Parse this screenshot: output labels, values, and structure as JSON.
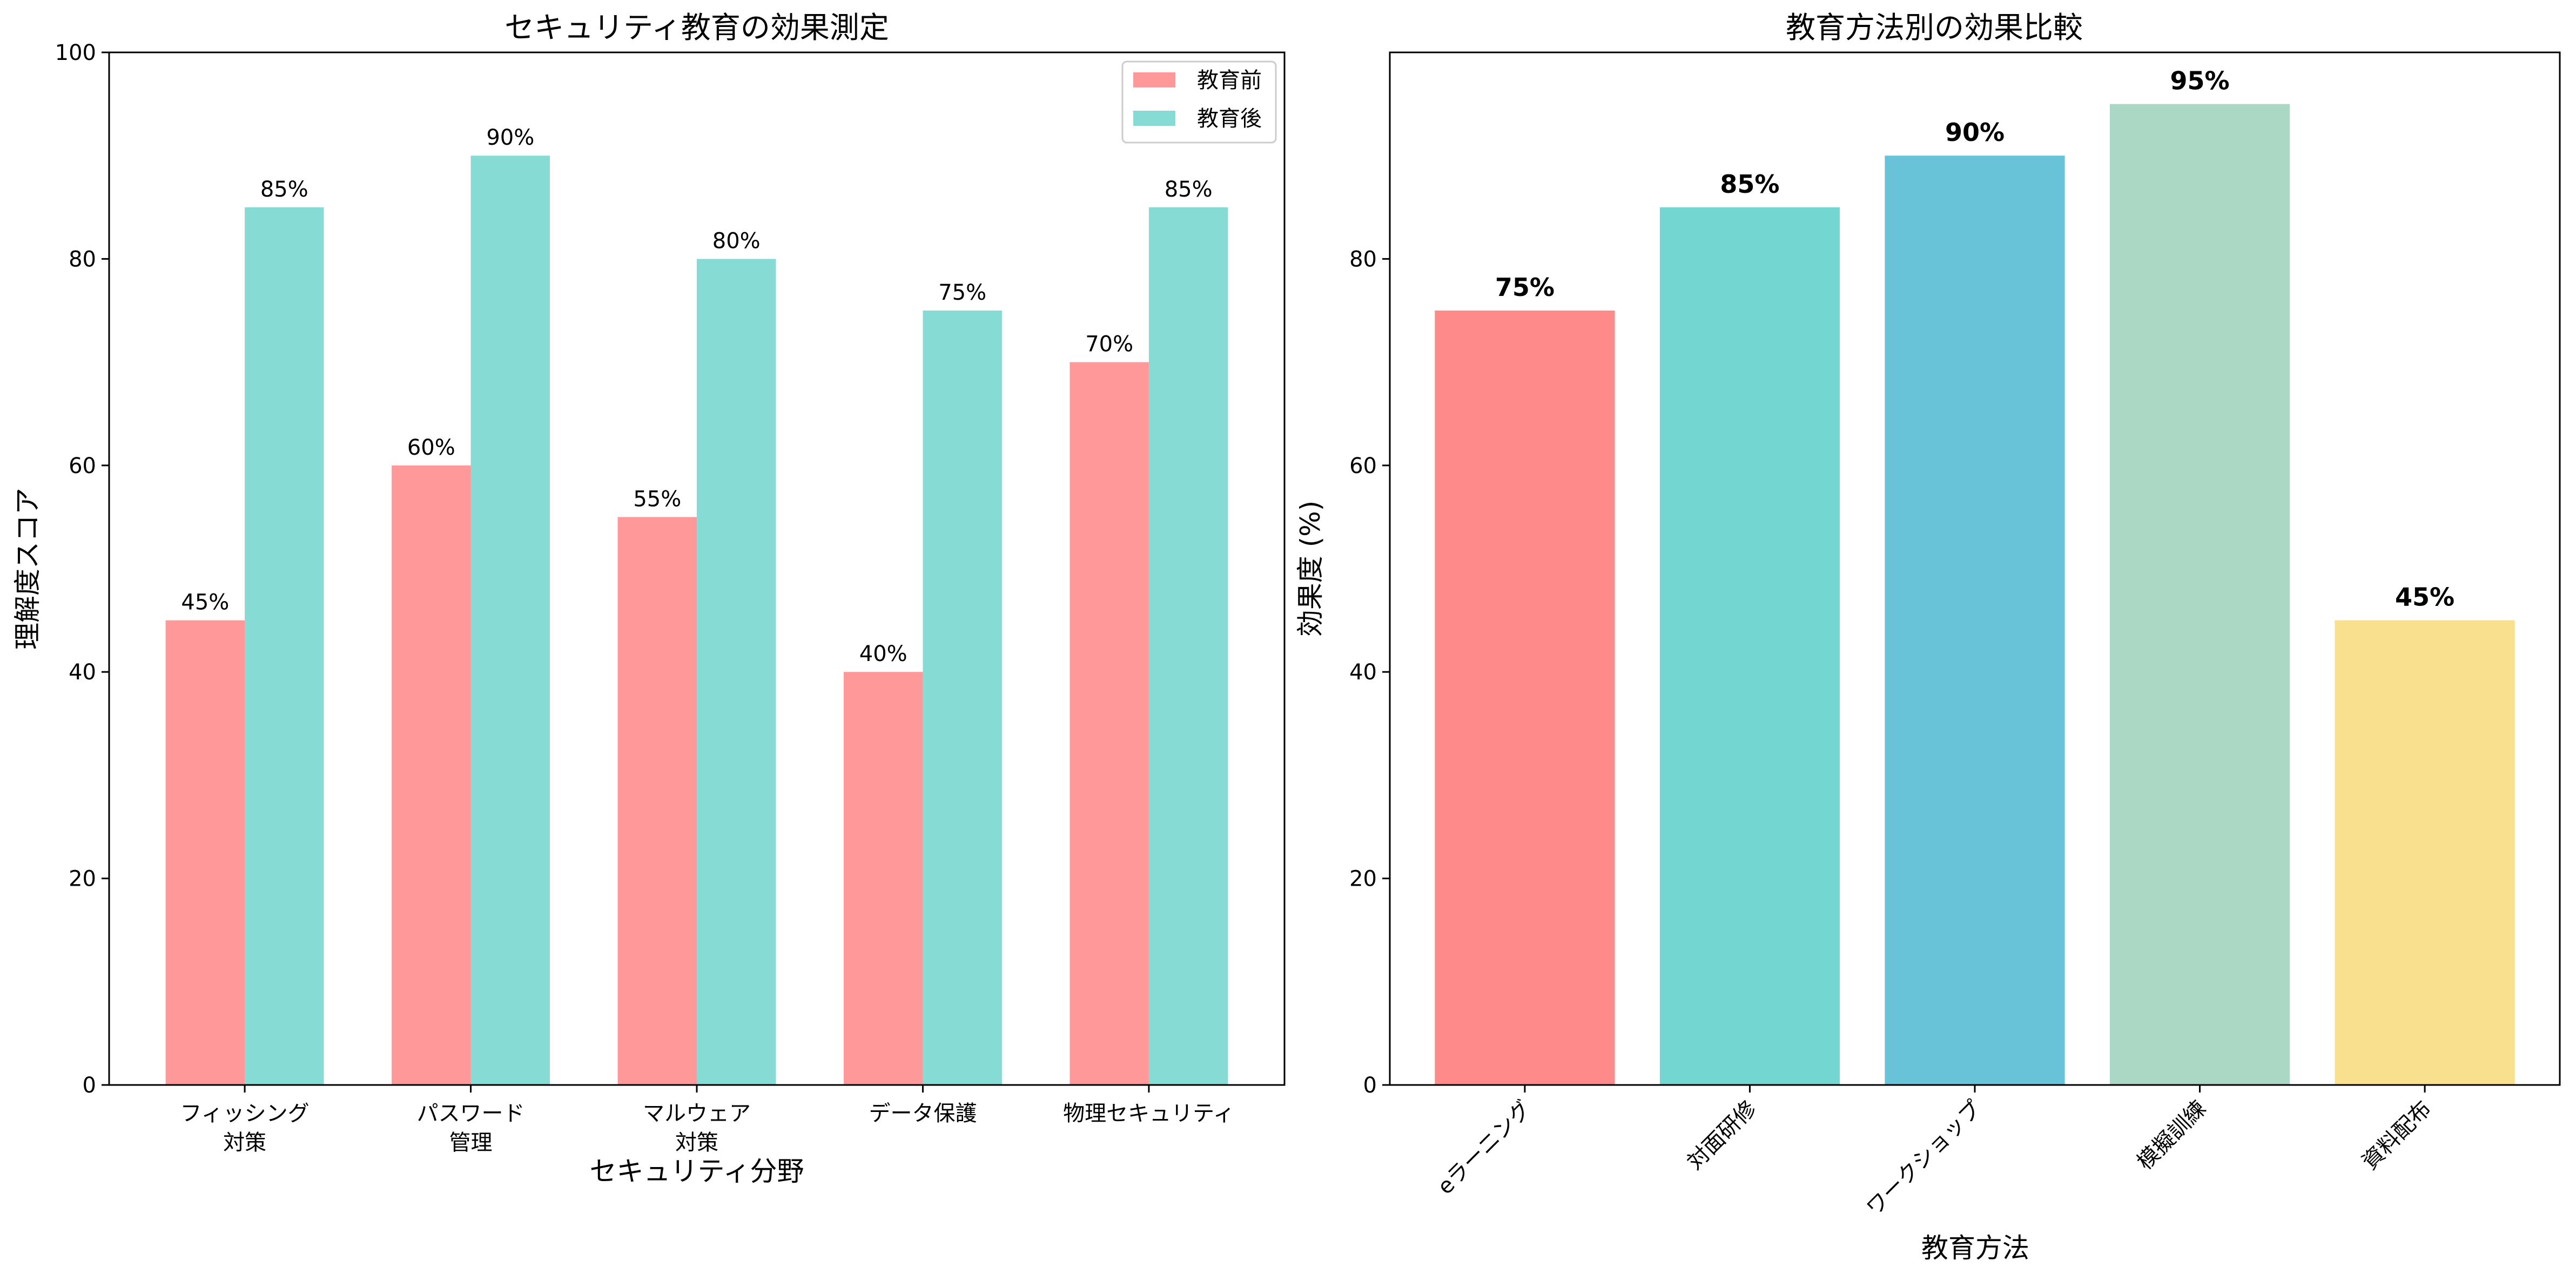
{
  "chart_data": [
    {
      "type": "bar",
      "title": "セキュリティ教育の効果測定",
      "xlabel": "セキュリティ分野",
      "ylabel": "理解度スコア",
      "ylim": [
        0,
        100
      ],
      "yticks": [
        0,
        20,
        40,
        60,
        80,
        100
      ],
      "categories": [
        [
          "フィッシング",
          "対策"
        ],
        [
          "パスワード",
          "管理"
        ],
        [
          "マルウェア",
          "対策"
        ],
        [
          "データ保護"
        ],
        [
          "物理セキュリティ"
        ]
      ],
      "series": [
        {
          "name": "教育前",
          "color": "#FF9999",
          "values": [
            45,
            60,
            55,
            40,
            70
          ],
          "labels": [
            "45%",
            "60%",
            "55%",
            "40%",
            "70%"
          ]
        },
        {
          "name": "教育後",
          "color": "#86DCD4",
          "values": [
            85,
            90,
            80,
            75,
            85
          ],
          "labels": [
            "85%",
            "90%",
            "80%",
            "75%",
            "85%"
          ]
        }
      ],
      "legend": "top-right",
      "grid": false
    },
    {
      "type": "bar",
      "title": "教育方法別の効果比較",
      "xlabel": "教育方法",
      "ylabel": "効果度 (%)",
      "ylim": [
        0,
        100
      ],
      "yticks": [
        0,
        20,
        40,
        60,
        80
      ],
      "categories": [
        "eラーニング",
        "対面研修",
        "ワークショップ",
        "模擬訓練",
        "資料配布"
      ],
      "values": [
        75,
        85,
        90,
        95,
        45
      ],
      "labels": [
        "75%",
        "85%",
        "90%",
        "95%",
        "45%"
      ],
      "colors": [
        "#FF8A8A",
        "#74D6D0",
        "#69C3D8",
        "#ABD8C4",
        "#F8E08E"
      ],
      "tick_rotation": 45,
      "grid": false
    }
  ]
}
